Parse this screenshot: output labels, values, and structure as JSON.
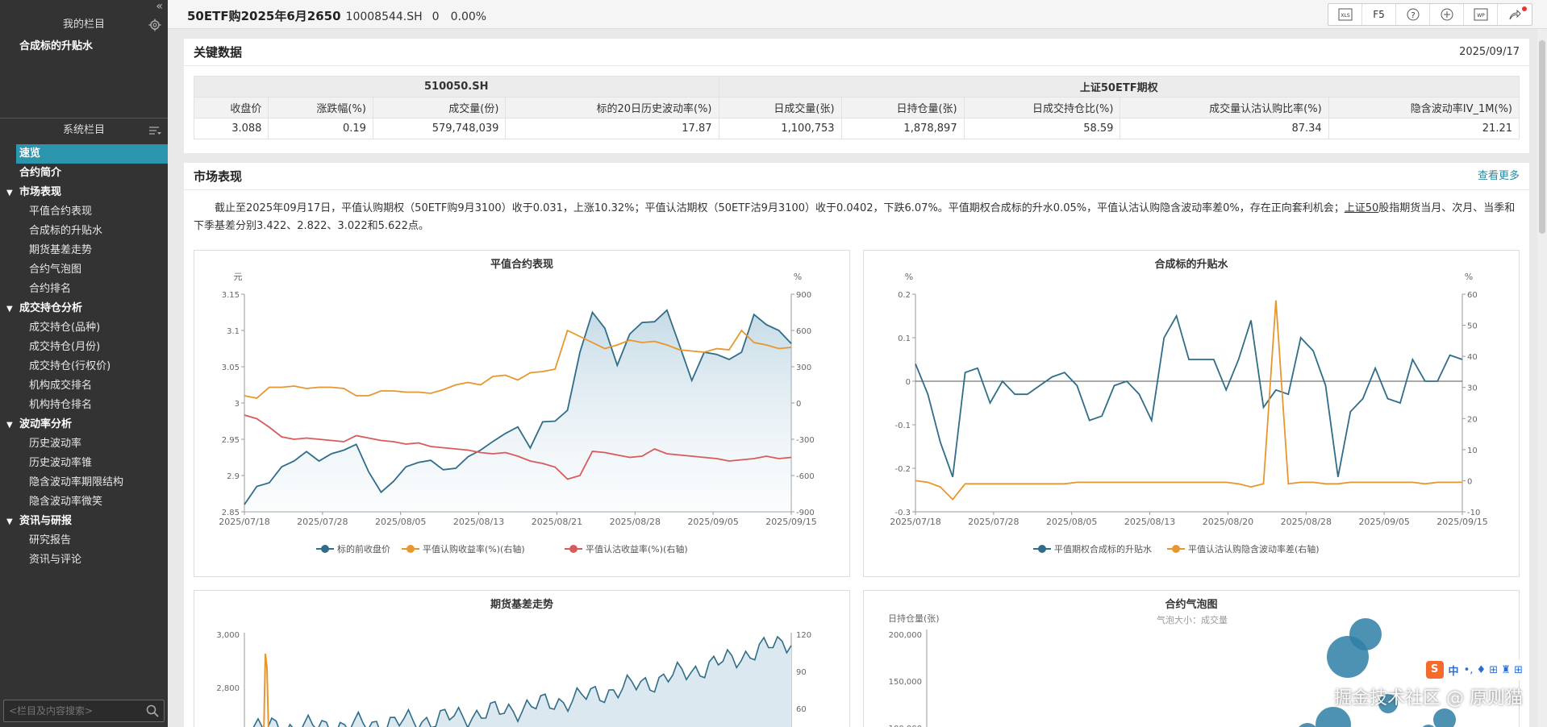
{
  "sidebar": {
    "collapse_glyph": "«",
    "my_section_title": "我的栏目",
    "my_items": [
      "合成标的升贴水"
    ],
    "sys_section_title": "系统栏目",
    "nav": [
      {
        "label": "速览",
        "type": "l0",
        "active": true
      },
      {
        "label": "合约简介",
        "type": "l0"
      },
      {
        "label": "市场表现",
        "type": "grp"
      },
      {
        "label": "平值合约表现",
        "type": "l1"
      },
      {
        "label": "合成标的升贴水",
        "type": "l1"
      },
      {
        "label": "期货基差走势",
        "type": "l1"
      },
      {
        "label": "合约气泡图",
        "type": "l1"
      },
      {
        "label": "合约排名",
        "type": "l1"
      },
      {
        "label": "成交持仓分析",
        "type": "grp"
      },
      {
        "label": "成交持仓(品种)",
        "type": "l1"
      },
      {
        "label": "成交持仓(月份)",
        "type": "l1"
      },
      {
        "label": "成交持仓(行权价)",
        "type": "l1"
      },
      {
        "label": "机构成交排名",
        "type": "l1"
      },
      {
        "label": "机构持仓排名",
        "type": "l1"
      },
      {
        "label": "波动率分析",
        "type": "grp"
      },
      {
        "label": "历史波动率",
        "type": "l1"
      },
      {
        "label": "历史波动率锥",
        "type": "l1"
      },
      {
        "label": "隐含波动率期限结构",
        "type": "l1"
      },
      {
        "label": "隐含波动率微笑",
        "type": "l1"
      },
      {
        "label": "资讯与研报",
        "type": "grp"
      },
      {
        "label": "研究报告",
        "type": "l1"
      },
      {
        "label": "资讯与评论",
        "type": "l1"
      }
    ],
    "search_placeholder": "<栏目及内容搜索>"
  },
  "header": {
    "title": "50ETF购2025年6月2650",
    "code": "10008544.SH",
    "change": "0",
    "pct": "0.00%",
    "toolbar": [
      "XLS",
      "F5",
      "?",
      "⊕",
      "WP",
      "⇗"
    ]
  },
  "key_data": {
    "title": "关键数据",
    "date": "2025/09/17",
    "group1": "510050.SH",
    "group2": "上证50ETF期权",
    "headers": [
      "收盘价",
      "涨跌幅(%)",
      "成交量(份)",
      "标的20日历史波动率(%)",
      "日成交量(张)",
      "日持仓量(张)",
      "日成交持仓比(%)",
      "成交量认沽认购比率(%)",
      "隐含波动率IV_1M(%)"
    ],
    "values": [
      "3.088",
      "0.19",
      "579,748,039",
      "17.87",
      "1,100,753",
      "1,878,897",
      "58.59",
      "87.34",
      "21.21"
    ]
  },
  "market": {
    "title": "市场表现",
    "more": "查看更多",
    "para_main": "截止至2025年09月17日，平值认购期权（50ETF购9月3100）收于0.031，上涨10.32%；平值认沽期权（50ETF沽9月3100）收于0.0402，下跌6.07%。平值期权合成标的升水0.05%，平值认沽认购隐含波动率差0%，存在正向套利机会；",
    "para_link": "上证50",
    "para_tail": "股指期货当月、次月、当季和下季基差分别3.422、2.822、3.022和5.622点。"
  },
  "chart_data": [
    {
      "type": "line",
      "title": "平值合约表现",
      "y_unit_left": "元",
      "y_unit_right": "%",
      "x_ticks": [
        "2025/07/18",
        "2025/07/28",
        "2025/08/05",
        "2025/08/13",
        "2025/08/21",
        "2025/08/28",
        "2025/09/05",
        "2025/09/15"
      ],
      "ylim_left": [
        2.85,
        3.15
      ],
      "ylim_right": [
        -900,
        900
      ],
      "yticks_left": [
        "3.15",
        "3.1",
        "3.05",
        "3",
        "2.95",
        "2.9",
        "2.85"
      ],
      "yticks_right": [
        "900",
        "600",
        "300",
        "0",
        "-300",
        "-600",
        "-900"
      ],
      "series": [
        {
          "name": "标的前收盘价",
          "axis": "left",
          "color": "#2f6d8a",
          "area": true,
          "values": [
            2.86,
            2.885,
            2.89,
            2.912,
            2.92,
            2.933,
            2.92,
            2.93,
            2.935,
            2.943,
            2.905,
            2.877,
            2.892,
            2.912,
            2.918,
            2.921,
            2.908,
            2.91,
            2.926,
            2.935,
            2.947,
            2.958,
            2.967,
            2.938,
            2.974,
            2.975,
            2.99,
            3.07,
            3.125,
            3.103,
            3.052,
            3.095,
            3.111,
            3.112,
            3.128,
            3.08,
            3.031,
            3.07,
            3.067,
            3.06,
            3.07,
            3.122,
            3.108,
            3.1,
            3.082
          ]
        },
        {
          "name": "平值认购收益率(%)(右轴)",
          "axis": "right",
          "color": "#e8962e",
          "area": false,
          "values": [
            60,
            40,
            130,
            130,
            140,
            120,
            130,
            130,
            120,
            60,
            60,
            100,
            100,
            90,
            90,
            80,
            110,
            150,
            170,
            150,
            220,
            230,
            190,
            250,
            260,
            280,
            600,
            550,
            500,
            450,
            480,
            520,
            500,
            510,
            480,
            440,
            430,
            420,
            450,
            440,
            600,
            500,
            480,
            450,
            460
          ]
        },
        {
          "name": "平值认沽收益率(%)(右轴)",
          "axis": "right",
          "color": "#d85a5c",
          "area": false,
          "values": [
            -100,
            -130,
            -200,
            -280,
            -300,
            -290,
            -300,
            -310,
            -320,
            -270,
            -290,
            -310,
            -320,
            -340,
            -330,
            -360,
            -370,
            -380,
            -390,
            -410,
            -420,
            -410,
            -440,
            -480,
            -500,
            -530,
            -630,
            -600,
            -400,
            -410,
            -430,
            -450,
            -440,
            -380,
            -420,
            -430,
            -440,
            -450,
            -460,
            -480,
            -470,
            -460,
            -440,
            -460,
            -450
          ]
        }
      ]
    },
    {
      "type": "line",
      "title": "合成标的升贴水",
      "y_unit_left": "%",
      "y_unit_right": "%",
      "x_ticks": [
        "2025/07/18",
        "2025/07/28",
        "2025/08/05",
        "2025/08/13",
        "2025/08/20",
        "2025/08/28",
        "2025/09/05",
        "2025/09/15"
      ],
      "ylim_left": [
        -0.3,
        0.2
      ],
      "ylim_right": [
        -10,
        60
      ],
      "yticks_left": [
        "0.2",
        "0.1",
        "0",
        "-0.1",
        "-0.2",
        "-0.3"
      ],
      "yticks_right": [
        "60",
        "50",
        "40",
        "30",
        "20",
        "10",
        "0",
        "-10"
      ],
      "series": [
        {
          "name": "平值期权合成标的升贴水",
          "axis": "left",
          "color": "#2f6d8a",
          "area": false,
          "values": [
            0.04,
            -0.03,
            -0.14,
            -0.22,
            0.02,
            0.03,
            -0.05,
            0,
            -0.03,
            -0.03,
            -0.01,
            0.01,
            0.02,
            -0.01,
            -0.09,
            -0.08,
            -0.01,
            0,
            -0.03,
            -0.09,
            0.1,
            0.15,
            0.05,
            0.05,
            0.05,
            -0.02,
            0.05,
            0.14,
            -0.06,
            -0.02,
            -0.03,
            0.1,
            0.07,
            -0.01,
            -0.22,
            -0.07,
            -0.04,
            0.03,
            -0.04,
            -0.05,
            0.05,
            0,
            0,
            0.06,
            0.05
          ]
        },
        {
          "name": "平值认沽认购隐含波动率差(右轴)",
          "axis": "right",
          "color": "#e8962e",
          "area": false,
          "values": [
            0,
            -0.5,
            -2,
            -6,
            -1,
            -1,
            -1,
            -1,
            -1,
            -1,
            -1,
            -1,
            -1,
            -0.5,
            -0.5,
            -0.5,
            -0.5,
            -0.5,
            -0.5,
            -0.5,
            -0.5,
            -0.5,
            -0.5,
            -0.5,
            -0.5,
            -0.5,
            -1,
            -2,
            -1,
            58,
            -1,
            -0.5,
            -0.5,
            -1,
            -1,
            -0.5,
            -0.5,
            -0.5,
            -0.5,
            -0.5,
            -0.5,
            -1,
            -0.5,
            -0.5,
            -0.5
          ]
        }
      ]
    },
    {
      "type": "line",
      "title": "期货基差走势",
      "yticks_left": [
        "3,000",
        "2,800"
      ],
      "yticks_right": [
        "120",
        "90",
        "60"
      ],
      "series": [
        {
          "axis": "right",
          "color": "#2f6d8a",
          "area": true
        },
        {
          "axis": "right",
          "color": "#e8962e",
          "area": false
        }
      ]
    },
    {
      "type": "scatter",
      "title": "合约气泡图",
      "subtitle": "气泡大小：成交量",
      "ylabel": "日持仓量(张)",
      "yticks_left": [
        "200,000",
        "150,000",
        "100,000"
      ]
    }
  ],
  "legends": {
    "c1": [
      "标的前收盘价",
      "平值认购收益率(%)(右轴)",
      "平值认沽收益率(%)(右轴)"
    ],
    "c2": [
      "平值期权合成标的升贴水",
      "平值认沽认购隐含波动率差(右轴)"
    ]
  },
  "ime": {
    "label": "中",
    "icons": "•, ♦ ⊞ ♜ ⊞"
  },
  "watermark": "掘金技术社区 @ 原则猫",
  "colors": {
    "accent": "#2b95ad",
    "series_blue": "#2f6d8a",
    "series_orange": "#e8962e",
    "series_red": "#d85a5c"
  }
}
